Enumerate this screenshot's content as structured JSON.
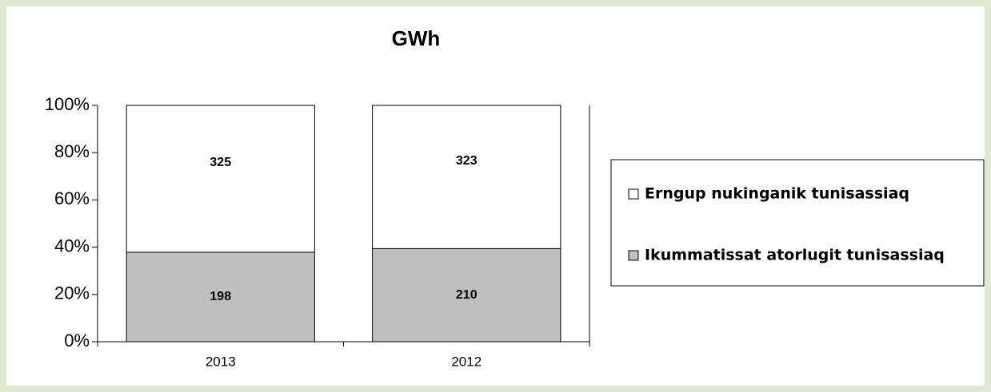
{
  "chart_data": {
    "type": "bar",
    "stacking": "percent",
    "title": "GWh",
    "categories": [
      "2013",
      "2012"
    ],
    "series": [
      {
        "name": "Ikummatissat atorlugit tunisassiaq",
        "color": "#c0c0c0",
        "values": [
          198,
          210
        ]
      },
      {
        "name": "Erngup nukinganik tunisassiaq",
        "color": "#ffffff",
        "values": [
          325,
          323
        ]
      }
    ],
    "ylim": [
      0,
      100
    ],
    "yticks": [
      {
        "value": 0,
        "label": "0%"
      },
      {
        "value": 20,
        "label": "20%"
      },
      {
        "value": 40,
        "label": "40%"
      },
      {
        "value": 60,
        "label": "60%"
      },
      {
        "value": 80,
        "label": "80%"
      },
      {
        "value": 100,
        "label": "100%"
      }
    ],
    "grid": false,
    "legend": "right"
  }
}
